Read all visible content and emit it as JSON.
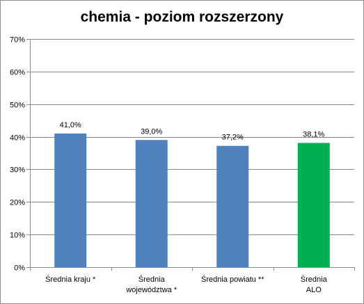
{
  "chart_data": {
    "type": "bar",
    "title": "chemia - poziom rozszerzony",
    "xlabel": "",
    "ylabel": "",
    "categories": [
      [
        "Średnia kraju *"
      ],
      [
        "Średnia",
        "województwa *"
      ],
      [
        "Średnia powiatu **"
      ],
      [
        "Średnia",
        "ALO"
      ]
    ],
    "values": [
      41.0,
      39.0,
      37.2,
      38.1
    ],
    "data_labels": [
      "41,0%",
      "39,0%",
      "37,2%",
      "38,1%"
    ],
    "bar_colors": [
      "#4F81BD",
      "#4F81BD",
      "#4F81BD",
      "#00B050"
    ],
    "ylim": [
      0,
      70
    ],
    "y_ticks": [
      0,
      10,
      20,
      30,
      40,
      50,
      60,
      70
    ],
    "y_tick_labels": [
      "0%",
      "10%",
      "20%",
      "30%",
      "40%",
      "50%",
      "60%",
      "70%"
    ],
    "grid": true,
    "legend": "none",
    "gridline_color": "#878787"
  }
}
